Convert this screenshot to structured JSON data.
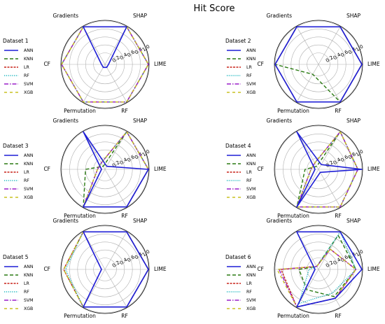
{
  "figure": {
    "title": "Hit Score"
  },
  "chart_data": [
    {
      "type": "radar",
      "title": "Dataset 1",
      "categories": [
        "SHAP",
        "LIME",
        "RF",
        "Permutation",
        "CF",
        "Gradients"
      ],
      "rticks": [
        0.2,
        0.4,
        0.6,
        0.8,
        1.0
      ],
      "rlim": [
        0,
        1
      ],
      "legend": "left",
      "series": [
        {
          "name": "ANN",
          "values": [
            1.0,
            0.0,
            0.0,
            0.0,
            0.0,
            1.0
          ]
        },
        {
          "name": "KNN",
          "values": [
            1.0,
            1.0,
            1.0,
            1.0,
            1.0,
            1.0
          ]
        },
        {
          "name": "LR",
          "values": [
            1.0,
            1.0,
            1.0,
            1.0,
            1.0,
            1.0
          ]
        },
        {
          "name": "RF",
          "values": [
            1.0,
            1.0,
            1.0,
            1.0,
            1.0,
            1.0
          ]
        },
        {
          "name": "SVM",
          "values": [
            1.0,
            1.0,
            1.0,
            1.0,
            1.0,
            1.0
          ]
        },
        {
          "name": "XGB",
          "values": [
            1.0,
            1.0,
            1.0,
            1.0,
            1.0,
            1.0
          ]
        }
      ]
    },
    {
      "type": "radar",
      "title": "Dataset 2",
      "categories": [
        "SHAP",
        "LIME",
        "RF",
        "Permutation",
        "CF",
        "Gradients"
      ],
      "rticks": [
        0.2,
        0.4,
        0.6,
        0.8,
        1.0
      ],
      "rlim": [
        0,
        1
      ],
      "legend": "left",
      "series": [
        {
          "name": "ANN",
          "values": [
            1.0,
            1.0,
            1.0,
            1.0,
            1.0,
            1.0
          ]
        },
        {
          "name": "KNN",
          "values": [
            1.0,
            1.0,
            1.0,
            0.2,
            1.0,
            1.0
          ]
        },
        {
          "name": "LR",
          "values": [
            1.0,
            1.0,
            1.0,
            1.0,
            1.0,
            1.0
          ]
        },
        {
          "name": "RF",
          "values": [
            1.0,
            1.0,
            1.0,
            1.0,
            1.0,
            1.0
          ]
        },
        {
          "name": "SVM",
          "values": [
            1.0,
            1.0,
            1.0,
            1.0,
            1.0,
            1.0
          ]
        },
        {
          "name": "XGB",
          "values": [
            1.0,
            1.0,
            1.0,
            1.0,
            1.0,
            1.0
          ]
        }
      ]
    },
    {
      "type": "radar",
      "title": "Dataset 3",
      "categories": [
        "SHAP",
        "LIME",
        "RF",
        "Permutation",
        "CF",
        "Gradients"
      ],
      "rticks": [
        0.2,
        0.4,
        0.6,
        0.8,
        1.0
      ],
      "rlim": [
        0,
        1
      ],
      "legend": "left",
      "series": [
        {
          "name": "ANN",
          "values": [
            0.0,
            1.0,
            1.0,
            1.0,
            0.0,
            1.0
          ]
        },
        {
          "name": "KNN",
          "values": [
            1.0,
            1.0,
            1.0,
            1.0,
            0.4,
            0.0
          ]
        },
        {
          "name": "LR",
          "values": [
            1.0,
            1.0,
            1.0,
            1.0,
            0.1,
            0.1
          ]
        },
        {
          "name": "RF",
          "values": [
            1.0,
            1.0,
            1.0,
            1.0,
            0.1,
            0.1
          ]
        },
        {
          "name": "SVM",
          "values": [
            1.0,
            1.0,
            1.0,
            1.0,
            0.1,
            0.1
          ]
        },
        {
          "name": "XGB",
          "values": [
            1.0,
            1.0,
            1.0,
            1.0,
            0.1,
            0.1
          ]
        }
      ]
    },
    {
      "type": "radar",
      "title": "Dataset 4",
      "categories": [
        "SHAP",
        "LIME",
        "RF",
        "Permutation",
        "CF",
        "Gradients"
      ],
      "rticks": [
        0.2,
        0.4,
        0.6,
        0.8,
        1.0
      ],
      "rlim": [
        0,
        1
      ],
      "legend": "left",
      "series": [
        {
          "name": "ANN",
          "values": [
            0.05,
            1.0,
            0.0,
            1.0,
            0.0,
            1.0
          ]
        },
        {
          "name": "KNN",
          "values": [
            1.0,
            0.9,
            1.0,
            1.0,
            0.25,
            0.0
          ]
        },
        {
          "name": "LR",
          "values": [
            1.0,
            0.9,
            1.0,
            1.0,
            0.1,
            0.1
          ]
        },
        {
          "name": "RF",
          "values": [
            1.0,
            0.9,
            1.0,
            1.0,
            0.1,
            0.1
          ]
        },
        {
          "name": "SVM",
          "values": [
            1.0,
            0.9,
            1.0,
            1.0,
            0.1,
            0.1
          ]
        },
        {
          "name": "XGB",
          "values": [
            1.0,
            0.9,
            1.0,
            1.0,
            0.1,
            0.1
          ]
        }
      ]
    },
    {
      "type": "radar",
      "title": "Dataset 5",
      "categories": [
        "SHAP",
        "LIME",
        "RF",
        "Permutation",
        "CF",
        "Gradients"
      ],
      "rticks": [
        0.2,
        0.4,
        0.6,
        0.8,
        1.0
      ],
      "rlim": [
        0,
        1
      ],
      "legend": "left",
      "series": [
        {
          "name": "ANN",
          "values": [
            1.0,
            1.0,
            1.0,
            1.0,
            0.0,
            1.0
          ]
        },
        {
          "name": "KNN",
          "values": [
            1.0,
            1.0,
            1.0,
            1.0,
            0.95,
            1.0
          ]
        },
        {
          "name": "LR",
          "values": [
            1.0,
            1.0,
            1.0,
            1.0,
            0.95,
            1.0
          ]
        },
        {
          "name": "RF",
          "values": [
            1.0,
            1.0,
            1.0,
            1.0,
            0.9,
            1.0
          ]
        },
        {
          "name": "SVM",
          "values": [
            1.0,
            1.0,
            1.0,
            1.0,
            0.0,
            1.0
          ]
        },
        {
          "name": "XGB",
          "values": [
            1.0,
            1.0,
            1.0,
            1.0,
            0.95,
            1.0
          ]
        }
      ]
    },
    {
      "type": "radar",
      "title": "Dataset 6",
      "categories": [
        "SHAP",
        "LIME",
        "RF",
        "Permutation",
        "CF",
        "Gradients"
      ],
      "rticks": [
        0.2,
        0.4,
        0.6,
        0.8,
        1.0
      ],
      "rlim": [
        0,
        1
      ],
      "legend": "left",
      "series": [
        {
          "name": "ANN",
          "values": [
            1.0,
            1.0,
            0.75,
            1.0,
            0.0,
            1.0
          ]
        },
        {
          "name": "KNN",
          "values": [
            0.9,
            0.85,
            0.7,
            0.5,
            0.4,
            0.0
          ]
        },
        {
          "name": "LR",
          "values": [
            0.5,
            0.85,
            0.75,
            1.0,
            0.85,
            0.0
          ]
        },
        {
          "name": "RF",
          "values": [
            1.0,
            0.85,
            0.6,
            0.9,
            0.15,
            0.0
          ]
        },
        {
          "name": "SVM",
          "values": [
            0.5,
            0.85,
            0.75,
            1.0,
            0.9,
            0.0
          ]
        },
        {
          "name": "XGB",
          "values": [
            0.5,
            0.85,
            0.75,
            1.0,
            0.95,
            0.0
          ]
        }
      ]
    }
  ],
  "styles": {
    "ANN": {
      "color": "#1f1fd6",
      "dash": ""
    },
    "KNN": {
      "color": "#2a7a12",
      "dash": "5,3"
    },
    "LR": {
      "color": "#c8241a",
      "dash": "3,1.5"
    },
    "RF": {
      "color": "#20b8c0",
      "dash": "1.2,1.6"
    },
    "SVM": {
      "color": "#9a1fc8",
      "dash": "6,2,1.5,2"
    },
    "XGB": {
      "color": "#c8c020",
      "dash": "4,4"
    }
  }
}
